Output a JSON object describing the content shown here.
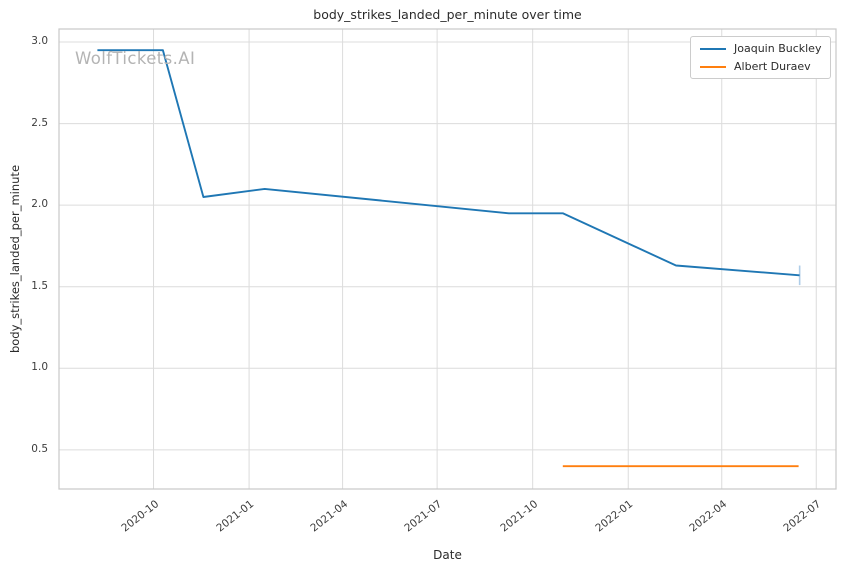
{
  "watermark": "WolfTickets.AI",
  "chart_data": {
    "type": "line",
    "title": "body_strikes_landed_per_minute over time",
    "xlabel": "Date",
    "ylabel": "body_strikes_landed_per_minute",
    "grid": true,
    "legend_position": "upper right",
    "x_ticks": [
      "2020-10",
      "2021-01",
      "2021-04",
      "2021-07",
      "2021-10",
      "2022-01",
      "2022-04",
      "2022-07"
    ],
    "y_ticks": [
      0.5,
      1.0,
      1.5,
      2.0,
      2.5,
      3.0
    ],
    "xlim": [
      "2020-07-02",
      "2022-07-20"
    ],
    "ylim": [
      0.26,
      3.08
    ],
    "series": [
      {
        "name": "Joaquin Buckley",
        "color": "#1f77b4",
        "points": [
          [
            "2020-08-08",
            2.95
          ],
          [
            "2020-10-10",
            2.95
          ],
          [
            "2020-11-18",
            2.05
          ],
          [
            "2021-01-16",
            2.1
          ],
          [
            "2021-09-08",
            1.95
          ],
          [
            "2021-10-30",
            1.95
          ],
          [
            "2022-02-16",
            1.63
          ],
          [
            "2022-06-15",
            1.57
          ]
        ]
      },
      {
        "name": "Albert Duraev",
        "color": "#ff7f0e",
        "points": [
          [
            "2021-10-30",
            0.4
          ],
          [
            "2022-06-14",
            0.4
          ]
        ]
      }
    ],
    "error_bar": {
      "series": "Joaquin Buckley",
      "date": "2022-06-15",
      "low": 1.51,
      "high": 1.63,
      "color": "#aecde8"
    }
  }
}
